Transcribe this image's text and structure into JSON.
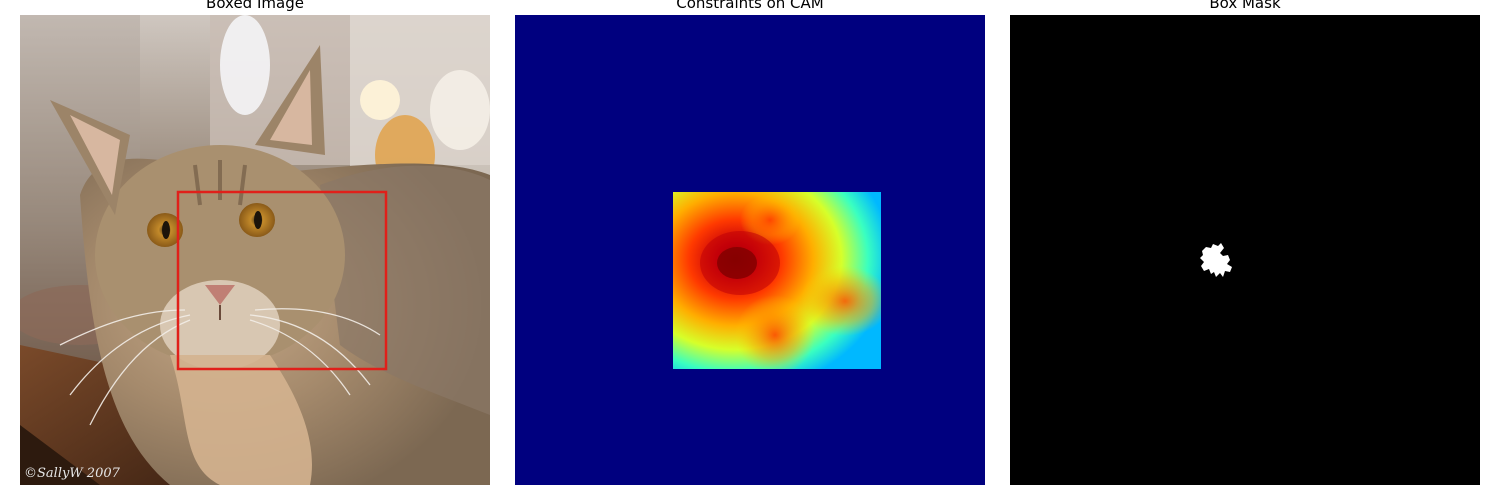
{
  "panels": [
    {
      "title": "Boxed Image",
      "watermark": "©SallyW 2007"
    },
    {
      "title": "Constraints on CAM"
    },
    {
      "title": "Box Mask"
    }
  ],
  "colors": {
    "box_outline": "#e0201a",
    "cam_background": "#00007f",
    "mask_background": "#000000",
    "mask_foreground": "#ffffff"
  },
  "icons": {
    "photo": "cat-photo-icon",
    "heatmap": "heatmap-icon",
    "mask": "mask-blob-icon"
  }
}
